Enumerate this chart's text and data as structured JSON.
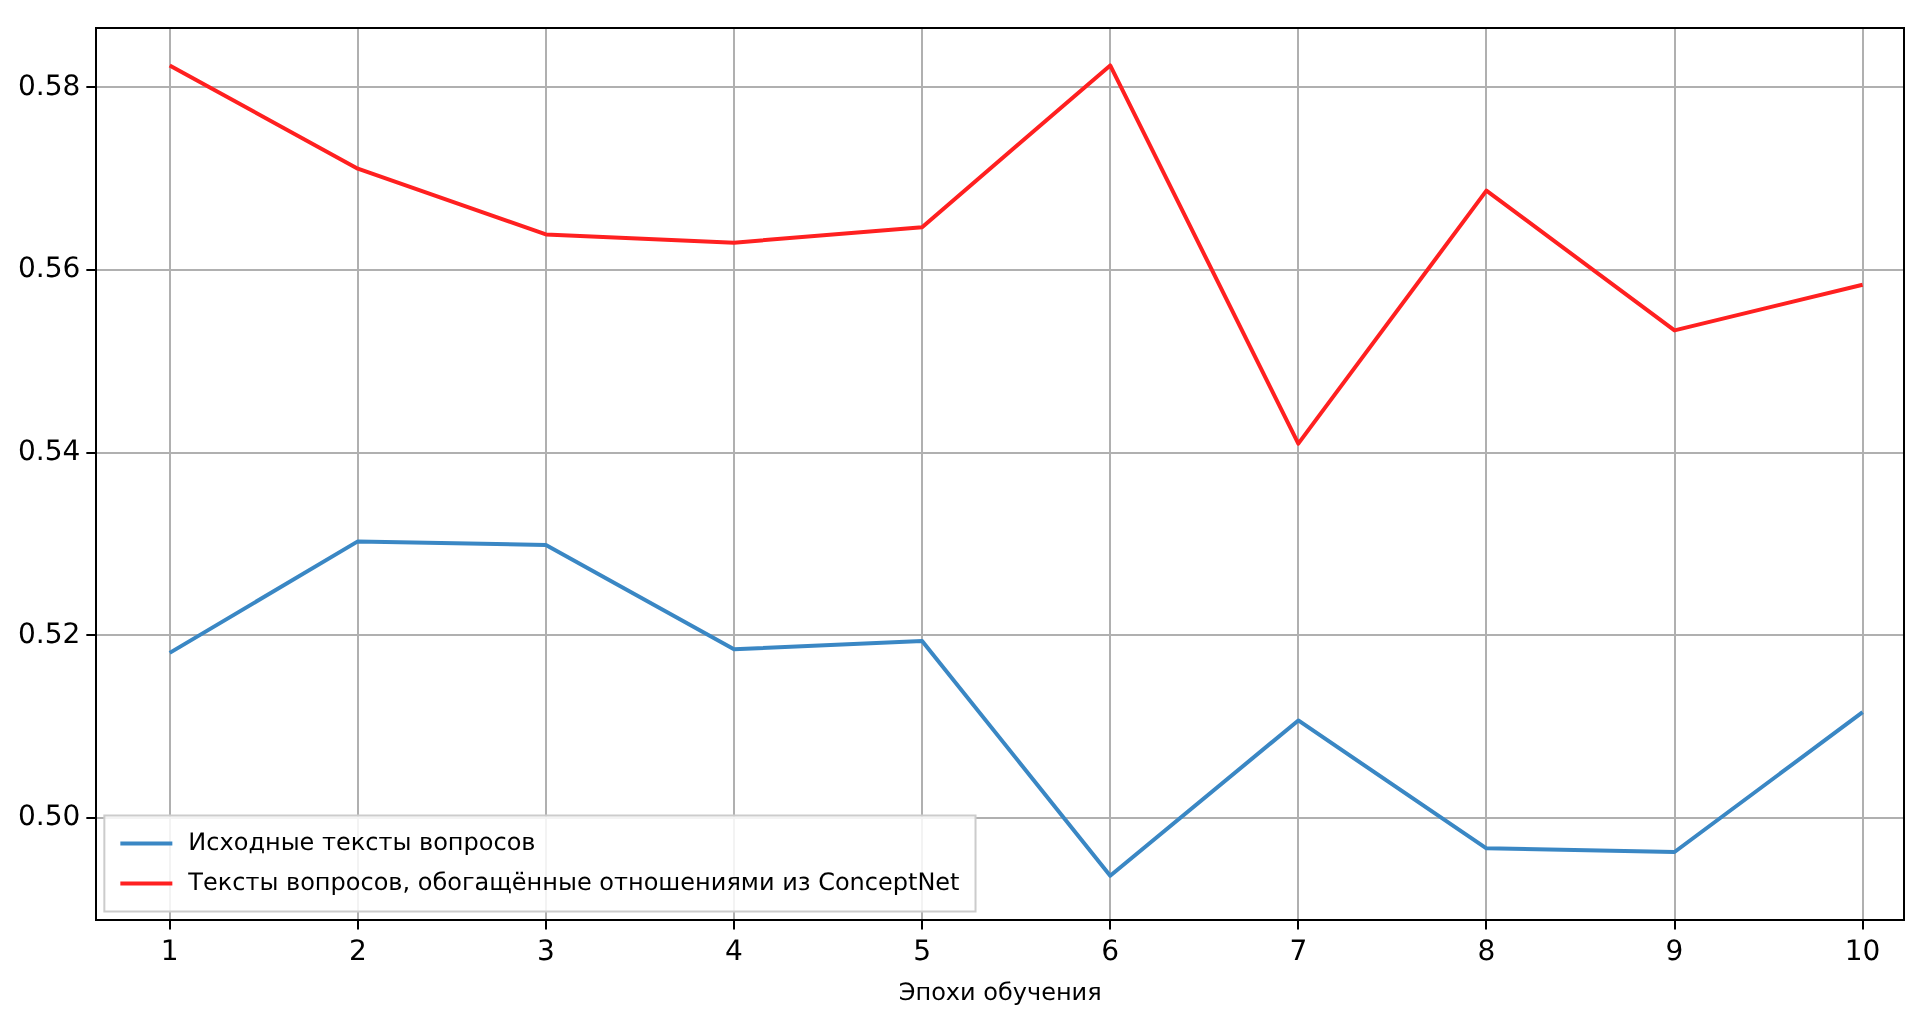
{
  "chart_data": {
    "type": "line",
    "xlabel": "Эпохи обучения",
    "x": [
      1,
      2,
      3,
      4,
      5,
      6,
      7,
      8,
      9,
      10
    ],
    "series": [
      {
        "name": "Исходные тексты вопросов",
        "color": "#3a87c4",
        "values": [
          0.5181,
          0.5303,
          0.5299,
          0.5185,
          0.5194,
          0.4937,
          0.5107,
          0.4967,
          0.4963,
          0.5116
        ]
      },
      {
        "name": "Тексты вопросов, обогащённые отношениями из ConceptNet",
        "color": "#ff2020",
        "values": [
          0.5824,
          0.5711,
          0.5639,
          0.563,
          0.5647,
          0.5824,
          0.541,
          0.5687,
          0.5534,
          0.5584
        ]
      }
    ],
    "xlim": [
      0.61,
      10.22
    ],
    "xticks": [
      1,
      2,
      3,
      4,
      5,
      6,
      7,
      8,
      9,
      10
    ],
    "ylim": [
      0.4889,
      0.5865
    ],
    "yticks": [
      {
        "value": 0.5,
        "label": "0.50"
      },
      {
        "value": 0.52,
        "label": "0.52"
      },
      {
        "value": 0.54,
        "label": "0.54"
      },
      {
        "value": 0.56,
        "label": "0.56"
      },
      {
        "value": 0.58,
        "label": "0.58"
      }
    ],
    "grid": true,
    "legend": "bottom left",
    "marker": "none",
    "line_style": "solid"
  }
}
